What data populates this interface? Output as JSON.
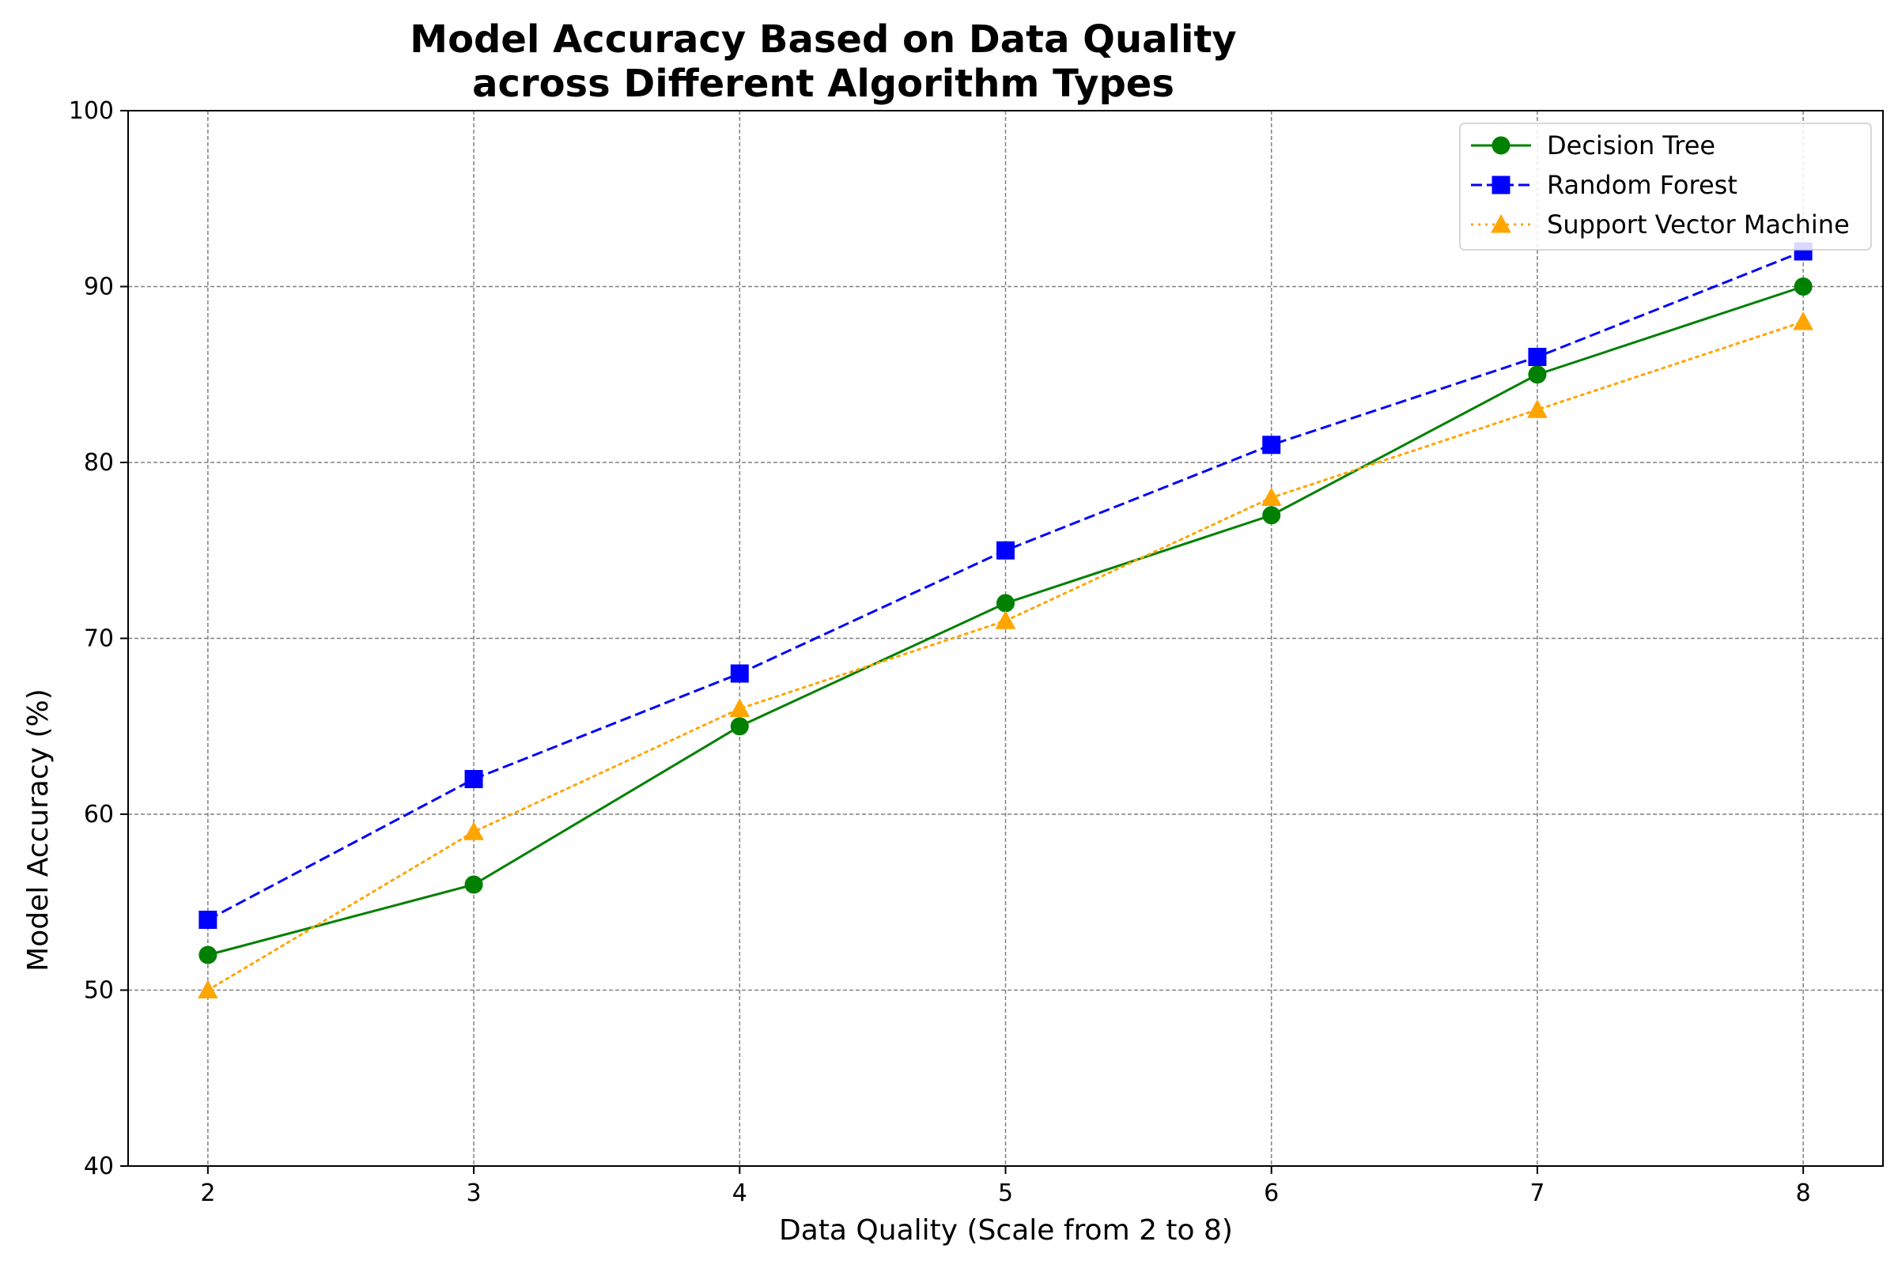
{
  "chart_data": {
    "type": "line",
    "title": [
      "Model Accuracy Based on Data Quality",
      "across Different Algorithm Types"
    ],
    "xlabel": "Data Quality (Scale from 2 to 8)",
    "ylabel": "Model Accuracy (%)",
    "x": [
      2,
      3,
      4,
      5,
      6,
      7,
      8
    ],
    "xlim": [
      1.7,
      8.3
    ],
    "ylim": [
      40,
      100
    ],
    "xticks": [
      "2",
      "3",
      "4",
      "5",
      "6",
      "7",
      "8"
    ],
    "yticks": [
      "40",
      "50",
      "60",
      "70",
      "80",
      "90",
      "100"
    ],
    "grid": true,
    "legend_position": "top-right",
    "series": [
      {
        "name": "Decision Tree",
        "values": [
          52,
          56,
          65,
          72,
          77,
          85,
          90
        ],
        "color": "#008000",
        "line_style": "solid",
        "marker": "circle"
      },
      {
        "name": "Random Forest",
        "values": [
          54,
          62,
          68,
          75,
          81,
          86,
          92
        ],
        "color": "#0000ff",
        "line_style": "dashed",
        "marker": "square"
      },
      {
        "name": "Support Vector Machine",
        "values": [
          50,
          59,
          66,
          71,
          78,
          83,
          88
        ],
        "color": "#ffa500",
        "line_style": "dotted",
        "marker": "triangle"
      }
    ]
  }
}
